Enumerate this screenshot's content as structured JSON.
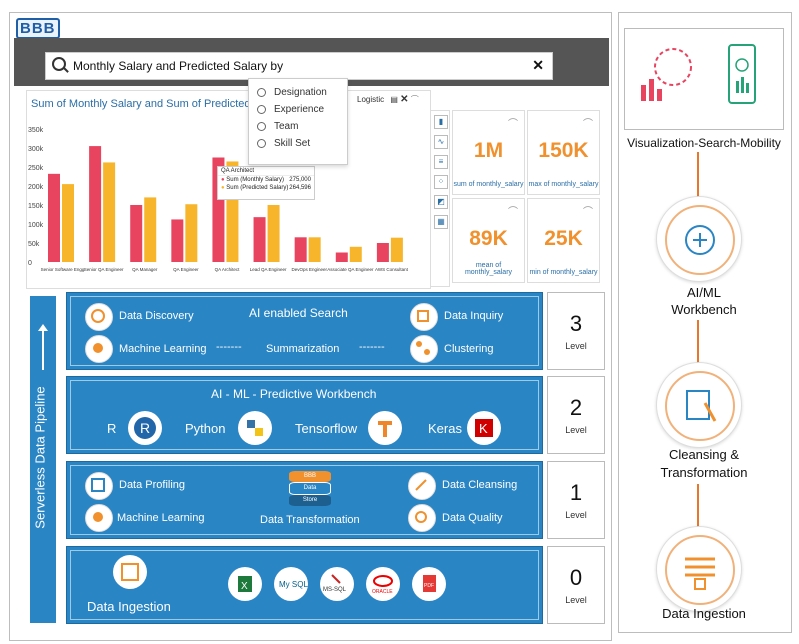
{
  "app": {
    "logo": "BBB"
  },
  "search": {
    "query": "Monthly Salary and Predicted Salary by",
    "options": [
      "Designation",
      "Experience",
      "Team",
      "Skill Set"
    ]
  },
  "chart_header": {
    "title": "Sum of Monthly Salary and Sum of Predicted Sal",
    "filter": "Logistic"
  },
  "tooltip": {
    "title": "QA Architect",
    "rows": [
      {
        "label": "Sum (Monthly Salary)",
        "value": "275,000"
      },
      {
        "label": "Sum (Predicted Salary)",
        "value": "264,596"
      }
    ]
  },
  "chart_data": {
    "type": "bar",
    "title": "Sum of Monthly Salary and Sum of Predicted Sal",
    "categories": [
      "Senior Software Engg",
      "Senior QA Engineer",
      "QA Manager",
      "QA Engineer",
      "QA Architect",
      "Lead QA Engineer",
      "DevOps Engineer",
      "Associate QA Engineer",
      "AWS Consultant"
    ],
    "series": [
      {
        "name": "Sum (Monthly Salary)",
        "color": "#e8435f",
        "values": [
          232000,
          305000,
          150000,
          112000,
          275000,
          118000,
          65000,
          25000,
          50000
        ]
      },
      {
        "name": "Sum (Predicted Salary)",
        "color": "#f7b52c",
        "values": [
          205000,
          262000,
          170000,
          152000,
          264596,
          150000,
          65000,
          40000,
          64000
        ]
      }
    ],
    "yticks": [
      "350k",
      "300k",
      "250k",
      "200k",
      "150k",
      "100k",
      "50k",
      "0"
    ],
    "ylim": [
      0,
      350000
    ]
  },
  "kpis": [
    {
      "value": "1M",
      "label": "sum of monthly_salary"
    },
    {
      "value": "150K",
      "label": "max of monthly_salary"
    },
    {
      "value": "89K",
      "label": "mean of monthly_salary"
    },
    {
      "value": "25K",
      "label": "min of monthly_salary"
    }
  ],
  "pipeline": {
    "label": "Serverless Data Pipeline"
  },
  "level3": {
    "title": "AI enabled Search",
    "items": [
      "Data Discovery",
      "Data Inquiry",
      "Machine Learning",
      "Summarization",
      "Clustering"
    ],
    "dashes": "-------",
    "num": "3",
    "word": "Level"
  },
  "level2": {
    "title": "AI - ML - Predictive Workbench",
    "items": [
      "R",
      "Python",
      "Tensorflow",
      "Keras"
    ],
    "num": "2",
    "word": "Level"
  },
  "level1": {
    "items": [
      "Data Profiling",
      "Data Cleansing",
      "Machine Learning",
      "Data Quality",
      "Data Transformation"
    ],
    "store": [
      "BBB",
      "Data",
      "Store"
    ],
    "num": "1",
    "word": "Level"
  },
  "level0": {
    "title": "Data Ingestion",
    "sources": [
      "X",
      "My SQL",
      "MS-SQL",
      "ORACLE",
      "PDF"
    ],
    "num": "0",
    "word": "Level"
  },
  "right": {
    "labels": [
      "Visualization-Search-Mobility",
      "AI/ML\nWorkbench",
      "Cleansing &\nTransformation",
      "Data Ingestion"
    ]
  }
}
